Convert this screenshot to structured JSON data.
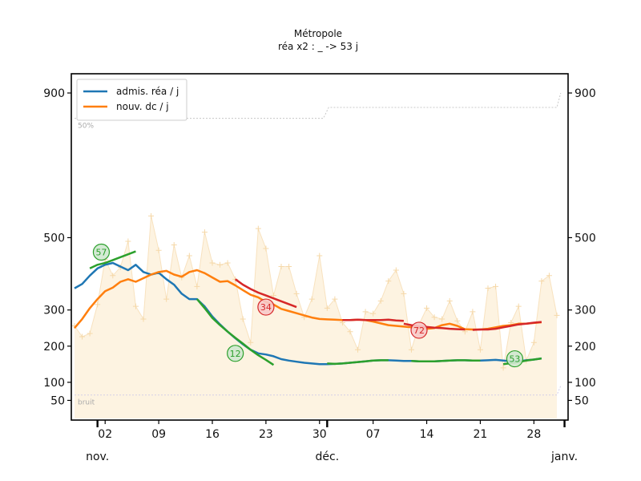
{
  "chart_data": {
    "type": "line",
    "title": "Métropole",
    "subtitle": "réa x2 : _ -> 53 j",
    "x_start_date": "2020-10-29",
    "x_range_days": [
      0,
      63
    ],
    "ylim": [
      0,
      960
    ],
    "y_ticks": [
      50,
      100,
      200,
      300,
      500,
      900
    ],
    "y_tick_labels": [
      "50",
      "100",
      "200",
      "300",
      "500",
      "900"
    ],
    "x_ticks": [
      {
        "day": 4,
        "label": "02"
      },
      {
        "day": 11,
        "label": "09"
      },
      {
        "day": 18,
        "label": "16"
      },
      {
        "day": 25,
        "label": "23"
      },
      {
        "day": 32,
        "label": "30"
      },
      {
        "day": 39,
        "label": "07"
      },
      {
        "day": 46,
        "label": "14"
      },
      {
        "day": 53,
        "label": "21"
      },
      {
        "day": 60,
        "label": "28"
      }
    ],
    "month_labels": [
      {
        "day": 3,
        "label": "nov."
      },
      {
        "day": 33,
        "label": "déc."
      },
      {
        "day": 64,
        "label": "janv."
      }
    ],
    "legend": [
      "admis. réa / j",
      "nouv. dc / j"
    ],
    "reference_lines": [
      {
        "label": "50%",
        "values": [
          [
            0,
            830
          ],
          [
            32.5,
            830
          ],
          [
            33.2,
            860
          ],
          [
            63,
            860
          ],
          [
            63.5,
            900
          ]
        ]
      },
      {
        "label": "bruit",
        "values": [
          [
            0,
            65
          ],
          [
            63,
            65
          ],
          [
            63.5,
            90
          ]
        ]
      }
    ],
    "area_series": {
      "name": "nouv. dc / j (quotidien)",
      "x": [
        0,
        1,
        2,
        3,
        4,
        5,
        6,
        7,
        8,
        9,
        10,
        11,
        12,
        13,
        14,
        15,
        16,
        17,
        18,
        19,
        20,
        21,
        22,
        23,
        24,
        25,
        26,
        27,
        28,
        29,
        30,
        31,
        32,
        33,
        34,
        35,
        36,
        37,
        38,
        39,
        40,
        41,
        42,
        43,
        44,
        45,
        46,
        47,
        48,
        49,
        50,
        51,
        52,
        53,
        54,
        55,
        56,
        57,
        58,
        59,
        60,
        61,
        62,
        63
      ],
      "values": [
        256,
        226,
        235,
        315,
        440,
        395,
        418,
        490,
        310,
        275,
        560,
        465,
        330,
        480,
        390,
        450,
        365,
        515,
        430,
        425,
        430,
        385,
        275,
        210,
        525,
        470,
        340,
        420,
        420,
        345,
        280,
        330,
        450,
        305,
        330,
        265,
        240,
        190,
        295,
        290,
        325,
        380,
        410,
        345,
        190,
        260,
        305,
        280,
        275,
        325,
        270,
        240,
        295,
        190,
        360,
        365,
        140,
        265,
        310,
        160,
        210,
        380,
        395,
        285
      ]
    },
    "series": [
      {
        "name": "admis. réa / j",
        "color": "#1f77b4",
        "x": [
          0,
          1,
          2,
          3,
          4,
          5,
          6,
          7,
          8,
          9,
          10,
          11,
          12,
          13,
          14,
          15,
          16,
          17,
          18,
          19,
          20,
          21,
          22,
          23,
          24,
          25,
          26,
          27,
          28,
          29,
          30,
          31,
          32,
          33,
          34,
          35,
          36,
          37,
          38,
          39,
          40,
          41,
          42,
          43,
          44,
          45,
          46,
          47,
          48,
          49,
          50,
          51,
          52,
          53,
          54,
          55,
          56,
          57,
          58,
          59,
          60,
          61
        ],
        "values": [
          360,
          372,
          395,
          415,
          425,
          430,
          420,
          410,
          425,
          405,
          398,
          403,
          385,
          370,
          345,
          330,
          330,
          310,
          282,
          260,
          240,
          222,
          205,
          190,
          180,
          177,
          172,
          164,
          160,
          157,
          154,
          152,
          150,
          150,
          151,
          152,
          154,
          156,
          158,
          160,
          161,
          161,
          160,
          159,
          159,
          158,
          158,
          158,
          159,
          160,
          161,
          161,
          160,
          160,
          161,
          162,
          160,
          158,
          158,
          161,
          163,
          166
        ]
      },
      {
        "name": "nouv. dc / j",
        "color": "#ff7f0e",
        "x": [
          0,
          1,
          2,
          3,
          4,
          5,
          6,
          7,
          8,
          9,
          10,
          11,
          12,
          13,
          14,
          15,
          16,
          17,
          18,
          19,
          20,
          21,
          22,
          23,
          24,
          25,
          26,
          27,
          28,
          29,
          30,
          31,
          32,
          33,
          34,
          35,
          36,
          37,
          38,
          39,
          40,
          41,
          42,
          43,
          44,
          45,
          46,
          47,
          48,
          49,
          50,
          51,
          52,
          53,
          54,
          55,
          56,
          57,
          58,
          59,
          60,
          61
        ],
        "values": [
          250,
          275,
          305,
          330,
          352,
          362,
          378,
          385,
          378,
          388,
          398,
          405,
          408,
          398,
          392,
          405,
          410,
          402,
          390,
          378,
          380,
          368,
          355,
          342,
          335,
          322,
          315,
          303,
          297,
          291,
          285,
          279,
          275,
          274,
          273,
          272,
          272,
          273,
          272,
          268,
          263,
          258,
          256,
          254,
          252,
          250,
          248,
          250,
          258,
          262,
          256,
          247,
          246,
          246,
          248,
          252,
          256,
          258,
          262,
          262,
          264,
          266
        ]
      }
    ],
    "overlay_segments": [
      {
        "color": "#2ca02c",
        "x": [
          2,
          3,
          4,
          5,
          6,
          7,
          8
        ],
        "values": [
          415,
          425,
          430,
          438,
          446,
          454,
          462
        ]
      },
      {
        "color": "#2ca02c",
        "x": [
          16,
          17,
          18,
          19,
          20,
          21,
          22,
          23,
          24,
          25,
          26
        ],
        "values": [
          330,
          305,
          278,
          258,
          240,
          223,
          207,
          190,
          175,
          162,
          148
        ]
      },
      {
        "color": "#2ca02c",
        "x": [
          33,
          34,
          35,
          36,
          37,
          38,
          39,
          40,
          41
        ],
        "values": [
          152,
          151,
          152,
          154,
          156,
          158,
          160,
          161,
          161
        ]
      },
      {
        "color": "#2ca02c",
        "x": [
          44,
          45,
          46,
          47,
          48,
          49,
          50,
          51,
          52,
          53
        ],
        "values": [
          159,
          158,
          158,
          158,
          159,
          160,
          161,
          161,
          160,
          160
        ]
      },
      {
        "color": "#2ca02c",
        "x": [
          56,
          57,
          58,
          59,
          60,
          61
        ],
        "values": [
          150,
          153,
          156,
          160,
          163,
          166
        ]
      },
      {
        "color": "#d62728",
        "x": [
          21,
          22,
          23,
          24,
          25,
          26,
          27,
          28,
          29
        ],
        "values": [
          385,
          370,
          358,
          348,
          340,
          332,
          324,
          316,
          308
        ]
      },
      {
        "color": "#d62728",
        "x": [
          35,
          36,
          37,
          38,
          39,
          40,
          41,
          42,
          43
        ],
        "values": [
          272,
          272,
          273,
          272,
          272,
          272,
          273,
          271,
          270
        ]
      },
      {
        "color": "#d62728",
        "x": [
          43,
          44,
          45,
          46,
          47,
          48,
          49,
          50,
          51
        ],
        "values": [
          262,
          258,
          255,
          253,
          251,
          250,
          248,
          247,
          246
        ]
      },
      {
        "color": "#d62728",
        "x": [
          52,
          53,
          54,
          55,
          56,
          57,
          58,
          59,
          60,
          61
        ],
        "values": [
          245,
          246,
          246,
          248,
          252,
          256,
          260,
          262,
          265,
          267
        ]
      }
    ],
    "badges": [
      {
        "label": "57",
        "day": 3.5,
        "value": 460,
        "color": "#2ca02c"
      },
      {
        "label": "12",
        "day": 21,
        "value": 180,
        "color": "#2ca02c"
      },
      {
        "label": "34",
        "day": 25,
        "value": 308,
        "color": "#d62728"
      },
      {
        "label": "72",
        "day": 45,
        "value": 244,
        "color": "#d62728"
      },
      {
        "label": "53",
        "day": 57.5,
        "value": 165,
        "color": "#2ca02c"
      }
    ]
  }
}
